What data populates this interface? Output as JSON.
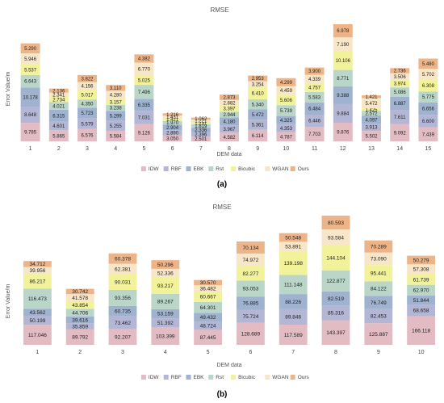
{
  "chart_data": [
    {
      "type": "bar",
      "stacked": true,
      "title": "RMSE",
      "xlabel": "DEM data",
      "ylabel": "Error Value/m",
      "caption": "(a)",
      "categories": [
        "1",
        "2",
        "3",
        "4",
        "5",
        "6",
        "7",
        "8",
        "9",
        "10",
        "11",
        "12",
        "13",
        "14",
        "15"
      ],
      "series": [
        {
          "name": "IDW",
          "values": [
            9.785,
            5.865,
            6.576,
            5.584,
            9.126,
            3.05,
            2.501,
            4.582,
            6.114,
            4.787,
            7.703,
            9.876,
            5.502,
            9.092,
            7.439
          ]
        },
        {
          "name": "RBF",
          "values": [
            8.648,
            4.601,
            5.579,
            5.255,
            7.031,
            2.89,
            2.396,
            3.967,
            5.361,
            4.353,
            6.446,
            9.884,
            3.913,
            7.611,
            6.6
          ]
        },
        {
          "name": "EBK",
          "values": [
            10.178,
            6.315,
            5.723,
            5.299,
            6.335,
            2.904,
            2.336,
            4.18,
            5.472,
            4.325,
            6.484,
            9.388,
            4.097,
            6.887,
            6.656
          ]
        },
        {
          "name": "Rst",
          "values": [
            6.643,
            4.021,
            4.35,
            3.238,
            7.496,
            1.97,
            1.819,
            2.944,
            5.34,
            5.739,
            5.583,
            8.771,
            2.572,
            5.086,
            5.775
          ]
        },
        {
          "name": "Bicubic",
          "values": [
            5.537,
            2.734,
            5.017,
            3.157,
            5.025,
            1.421,
            1.231,
            3.397,
            6.41,
            5.606,
            4.757,
            10.106,
            1.425,
            3.974,
            6.308
          ]
        },
        {
          "name": "WGAN",
          "values": [
            5.946,
            2.341,
            4.156,
            4.28,
            6.77,
            1.431,
            1.221,
            2.882,
            3.254,
            4.459,
            4.339,
            7.19,
            5.472,
            3.506,
            5.702
          ]
        },
        {
          "name": "Ours",
          "values": [
            5.29,
            2.136,
            3.822,
            3.11,
            4.382,
            1.216,
            1.062,
            2.873,
            2.953,
            4.299,
            3.9,
            6.978,
            1.421,
            2.736,
            5.48
          ]
        }
      ]
    },
    {
      "type": "bar",
      "stacked": true,
      "title": "RMSE",
      "xlabel": "DEM data",
      "ylabel": "Error Value/m",
      "caption": "(b)",
      "categories": [
        "1",
        "2",
        "3",
        "4",
        "5",
        "6",
        "7",
        "8",
        "9",
        "10"
      ],
      "series": [
        {
          "name": "IDW",
          "values": [
            117.046,
            89.792,
            92.207,
            103.399,
            87.445,
            128.689,
            117.589,
            143.397,
            125.887,
            166.118
          ]
        },
        {
          "name": "RBF",
          "values": [
            50.199,
            35.859,
            73.462,
            51.392,
            48.724,
            75.724,
            89.846,
            85.316,
            82.453,
            68.658
          ]
        },
        {
          "name": "EBK",
          "values": [
            43.562,
            39.616,
            60.735,
            53.159,
            49.432,
            76.885,
            88.226,
            82.519,
            76.749,
            51.844
          ]
        },
        {
          "name": "Rst",
          "values": [
            116.473,
            44.706,
            93.356,
            89.267,
            64.301,
            93.053,
            111.148,
            122.877,
            84.122,
            62.97
          ]
        },
        {
          "name": "Bicubic",
          "values": [
            86.217,
            43.854,
            90.031,
            93.217,
            60.667,
            82.277,
            139.198,
            144.104,
            95.441,
            61.739
          ]
        },
        {
          "name": "WGAN",
          "values": [
            39.956,
            41.578,
            62.381,
            52.336,
            36.482,
            74.972,
            53.891,
            93.584,
            73.09,
            57.308
          ]
        },
        {
          "name": "Ours",
          "values": [
            34.712,
            30.742,
            60.378,
            50.296,
            30.57,
            70.134,
            50.548,
            80.593,
            70.289,
            50.279
          ]
        }
      ]
    }
  ],
  "colors": {
    "IDW": "#e3bcc3",
    "RBF": "#b3b7d5",
    "EBK": "#9fb2d0",
    "Rst": "#b9d6c9",
    "Bicubic": "#f2f29a",
    "WGAN": "#f7e6c8",
    "Ours": "#edb487"
  }
}
